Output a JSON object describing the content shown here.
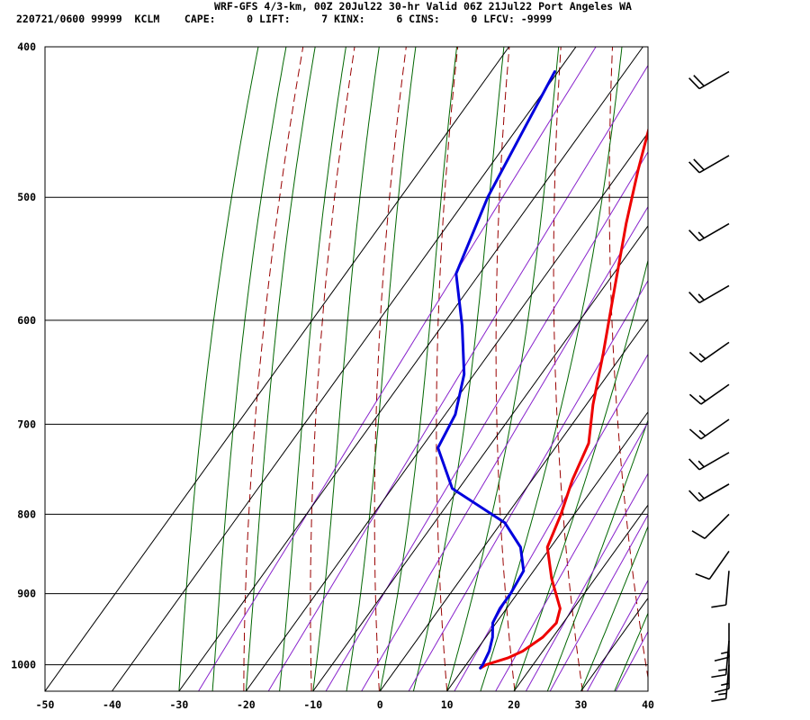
{
  "header": {
    "title": "WRF-GFS 4/3-km, 00Z 20Jul22 30-hr Valid 06Z 21Jul22 Port Angeles WA",
    "info": "220721/0600 99999  KCLM    CAPE:     0 LIFT:     7 KINX:     6 CINS:     0 LFCV: -9999"
  },
  "chart_data": {
    "type": "line",
    "title": "WRF-GFS 4/3-km, 00Z 20Jul22 30-hr Valid 06Z 21Jul22 Port Angeles WA",
    "xlabel": "",
    "ylabel": "",
    "xlim": [
      -50,
      40
    ],
    "ylim": [
      1040,
      400
    ],
    "y_scale": "log",
    "x_ticks": [
      "-50",
      "-40",
      "-30",
      "-20",
      "-10",
      "0",
      "10",
      "20",
      "30",
      "40"
    ],
    "y_ticks": [
      "400",
      "500",
      "600",
      "700",
      "800",
      "900",
      "1000"
    ],
    "grid": true,
    "colors": {
      "temperature": "#ee0000",
      "dewpoint": "#0000dd",
      "dry_adiabat": "#990000",
      "moist_adiabat": "#006600",
      "mixing_ratio": "#8822cc"
    },
    "series": [
      {
        "key": "temperature",
        "values": [
          [
            12.5,
            1005
          ],
          [
            13.0,
            1000
          ],
          [
            15.5,
            990
          ],
          [
            17.0,
            980
          ],
          [
            18.5,
            960
          ],
          [
            19.0,
            940
          ],
          [
            18.0,
            920
          ],
          [
            13.5,
            880
          ],
          [
            9.5,
            840
          ],
          [
            8.0,
            800
          ],
          [
            6.0,
            760
          ],
          [
            4.5,
            720
          ],
          [
            1.0,
            680
          ],
          [
            -3.0,
            630
          ],
          [
            -8.5,
            570
          ],
          [
            -13.5,
            520
          ],
          [
            -17.5,
            480
          ],
          [
            -21.0,
            445
          ],
          [
            -24.5,
            415
          ]
        ]
      },
      {
        "key": "dewpoint",
        "values": [
          [
            12.5,
            1005
          ],
          [
            12.5,
            1000
          ],
          [
            12.0,
            980
          ],
          [
            11.0,
            960
          ],
          [
            9.5,
            940
          ],
          [
            9.0,
            920
          ],
          [
            9.0,
            900
          ],
          [
            8.5,
            870
          ],
          [
            5.5,
            840
          ],
          [
            0.5,
            810
          ],
          [
            -11.0,
            770
          ],
          [
            -17.5,
            725
          ],
          [
            -18.5,
            690
          ],
          [
            -21.5,
            650
          ],
          [
            -27.0,
            605
          ],
          [
            -33.5,
            560
          ],
          [
            -37.0,
            500
          ],
          [
            -39.0,
            450
          ],
          [
            -40.5,
            415
          ]
        ]
      }
    ],
    "wind_barbs": [
      {
        "p": 415,
        "dir": 240,
        "spd": 20
      },
      {
        "p": 470,
        "dir": 240,
        "spd": 20
      },
      {
        "p": 520,
        "dir": 240,
        "spd": 15
      },
      {
        "p": 570,
        "dir": 240,
        "spd": 15
      },
      {
        "p": 620,
        "dir": 235,
        "spd": 15
      },
      {
        "p": 660,
        "dir": 235,
        "spd": 15
      },
      {
        "p": 695,
        "dir": 235,
        "spd": 15
      },
      {
        "p": 730,
        "dir": 240,
        "spd": 15
      },
      {
        "p": 765,
        "dir": 240,
        "spd": 15
      },
      {
        "p": 800,
        "dir": 225,
        "spd": 10
      },
      {
        "p": 845,
        "dir": 215,
        "spd": 10
      },
      {
        "p": 870,
        "dir": 185,
        "spd": 10
      },
      {
        "p": 940,
        "dir": 180,
        "spd": 15
      },
      {
        "p": 965,
        "dir": 185,
        "spd": 15
      },
      {
        "p": 985,
        "dir": 180,
        "spd": 15
      },
      {
        "p": 1000,
        "dir": 185,
        "spd": 15
      }
    ]
  }
}
